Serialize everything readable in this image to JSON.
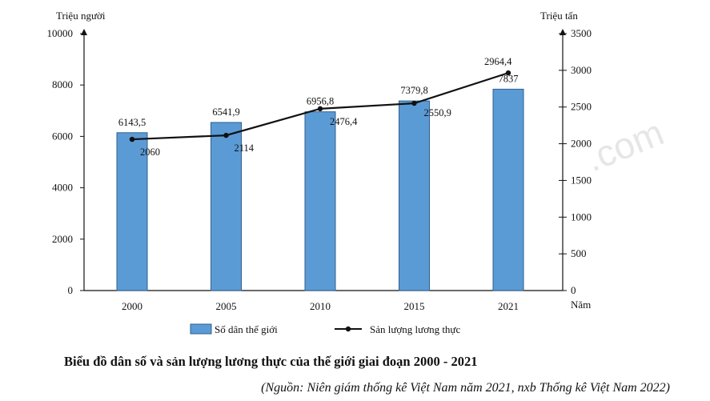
{
  "chart_data": {
    "type": "bar+line",
    "title": "Biểu đồ dân số và sản lượng lương thực của thế giới giai đoạn 2000 - 2021",
    "source": "(Nguồn: Niên giám thống kê Việt Nam năm 2021, nxb Thống kê Việt Nam 2022)",
    "categories": [
      "2000",
      "2005",
      "2010",
      "2015",
      "2021"
    ],
    "xlabel": "Năm",
    "left_axis": {
      "label": "Triệu người",
      "range": [
        0,
        10000
      ],
      "ticks": [
        0,
        2000,
        4000,
        6000,
        8000,
        10000
      ]
    },
    "right_axis": {
      "label": "Triệu tấn",
      "range": [
        0,
        3500
      ],
      "ticks": [
        0,
        500,
        1000,
        1500,
        2000,
        2500,
        3000,
        3500
      ]
    },
    "series": [
      {
        "name": "Số dân thế giới",
        "kind": "bar",
        "axis": "left",
        "values": [
          6143.5,
          6541.9,
          6956.8,
          7379.8,
          7837
        ],
        "labels": [
          "6143,5",
          "6541,9",
          "6956,8",
          "7379,8",
          "7837"
        ],
        "color": "#5b9bd5"
      },
      {
        "name": "Sản lượng lương thực",
        "kind": "line",
        "axis": "right",
        "values": [
          2060,
          2114,
          2476.4,
          2550.9,
          2964.4
        ],
        "labels": [
          "2060",
          "2114",
          "2476,4",
          "2550,9",
          "2964,4"
        ],
        "color": "#111111"
      }
    ],
    "legend_position": "bottom"
  },
  "watermark": ".com"
}
